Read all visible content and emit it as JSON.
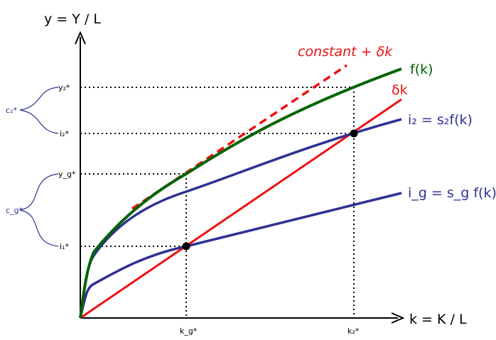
{
  "axes": {
    "y_label": "y = Y / L",
    "x_label": "k = K / L"
  },
  "curves": {
    "f": {
      "label": "f(k)",
      "color": "#006400"
    },
    "delta_k": {
      "label": "δk",
      "color": "#ee1111"
    },
    "i2": {
      "label": "i₂ = s₂f(k)",
      "color": "#2e3192"
    },
    "ig": {
      "label": "i_g = s_g f(k)",
      "color": "#2e3192"
    },
    "tangent": {
      "label": "constant + δk",
      "color": "#ee1111"
    }
  },
  "y_marks": {
    "y2": "y₂*",
    "i2": "i₂*",
    "yg": "y_g*",
    "i1": "i₁*"
  },
  "x_marks": {
    "kg": "k_g*",
    "k2": "k₂*"
  },
  "braces": {
    "c2": {
      "label": "c₂*",
      "color": "#2e3192"
    },
    "cg": {
      "label": "c_g*",
      "color": "#2e3192"
    }
  }
}
